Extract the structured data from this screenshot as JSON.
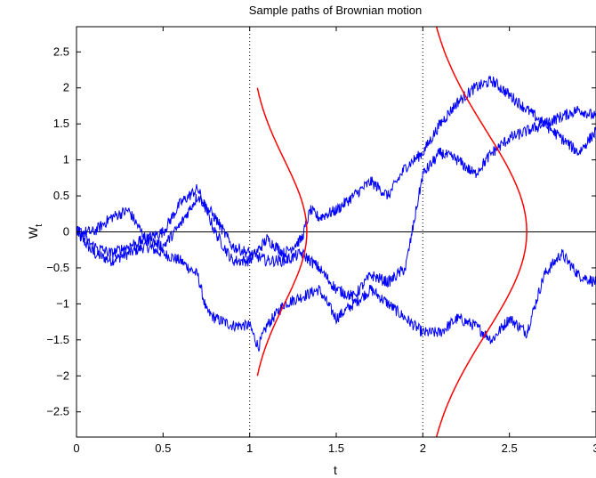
{
  "chart_data": {
    "type": "line",
    "title": "Sample paths of Brownian motion",
    "xlabel": "t",
    "ylabel": "W",
    "ylabel_subscript": "t",
    "xlim": [
      0,
      3
    ],
    "ylim": [
      -2.85,
      2.85
    ],
    "xticks": [
      0,
      0.5,
      1,
      1.5,
      2,
      2.5,
      3
    ],
    "xtick_labels": [
      "0",
      "0.5",
      "1",
      "1.5",
      "2",
      "2.5",
      "3"
    ],
    "yticks": [
      -2.5,
      -2,
      -1.5,
      -1,
      -0.5,
      0,
      0.5,
      1,
      1.5,
      2,
      2.5
    ],
    "ytick_labels": [
      "−2.5",
      "−2",
      "−1.5",
      "−1",
      "−0.5",
      "0",
      "0.5",
      "1",
      "1.5",
      "2",
      "2.5"
    ],
    "grid": false,
    "reference_lines": {
      "horizontal_zero": 0,
      "vertical_dotted": [
        1,
        2
      ]
    },
    "colors": {
      "paths": "#0000ff",
      "densities": "#ff0000",
      "axes": "#000000"
    },
    "series": [
      {
        "kind": "path",
        "x": [
          0,
          0.1,
          0.2,
          0.3,
          0.4,
          0.5,
          0.6,
          0.7,
          0.75,
          0.8,
          0.9,
          1.0,
          1.05,
          1.1,
          1.2,
          1.3,
          1.4,
          1.5,
          1.6,
          1.7,
          1.8,
          1.9,
          2.0,
          2.1,
          2.2,
          2.3,
          2.4,
          2.5,
          2.6,
          2.7,
          2.8,
          2.9,
          3.0
        ],
        "y": [
          0.0,
          -0.3,
          -0.4,
          -0.3,
          -0.2,
          -0.3,
          -0.4,
          -0.6,
          -1.1,
          -1.2,
          -1.3,
          -1.3,
          -1.6,
          -1.3,
          -1.0,
          -0.9,
          -0.8,
          -1.2,
          -1.0,
          -0.8,
          -1.0,
          -1.2,
          -1.4,
          -1.4,
          -1.2,
          -1.3,
          -1.5,
          -1.2,
          -1.4,
          -0.6,
          -0.3,
          -0.6,
          -0.7
        ]
      },
      {
        "kind": "path",
        "x": [
          0,
          0.1,
          0.2,
          0.3,
          0.4,
          0.5,
          0.6,
          0.7,
          0.8,
          0.9,
          1.0,
          1.1,
          1.2,
          1.3,
          1.35,
          1.4,
          1.5,
          1.6,
          1.7,
          1.8,
          1.9,
          2.0,
          2.1,
          2.2,
          2.3,
          2.4,
          2.5,
          2.6,
          2.7,
          2.8,
          2.9,
          3.0
        ],
        "y": [
          0.0,
          0.0,
          0.2,
          0.3,
          -0.1,
          0.0,
          0.4,
          0.6,
          0.0,
          -0.4,
          -0.4,
          -0.1,
          -0.3,
          -0.1,
          0.3,
          0.2,
          0.3,
          0.5,
          0.7,
          0.5,
          0.9,
          1.1,
          1.5,
          1.8,
          2.0,
          2.1,
          1.9,
          1.7,
          1.5,
          1.6,
          1.7,
          1.6
        ]
      },
      {
        "kind": "path",
        "x": [
          0,
          0.1,
          0.2,
          0.3,
          0.4,
          0.5,
          0.6,
          0.7,
          0.8,
          0.9,
          1.0,
          1.1,
          1.2,
          1.3,
          1.4,
          1.5,
          1.6,
          1.7,
          1.8,
          1.9,
          2.0,
          2.1,
          2.2,
          2.3,
          2.4,
          2.5,
          2.6,
          2.7,
          2.8,
          2.9,
          3.0
        ],
        "y": [
          0.0,
          -0.2,
          -0.3,
          -0.2,
          -0.1,
          -0.2,
          0.1,
          0.5,
          0.2,
          -0.2,
          -0.3,
          -0.4,
          -0.4,
          -0.3,
          -0.5,
          -0.8,
          -0.9,
          -0.6,
          -0.7,
          -0.5,
          0.8,
          1.1,
          1.0,
          0.8,
          1.1,
          1.3,
          1.4,
          1.5,
          1.3,
          1.1,
          1.4
        ]
      },
      {
        "kind": "density",
        "base_t": 1,
        "variance": 1,
        "scale": 0.33,
        "w_range": [
          -2,
          2
        ]
      },
      {
        "kind": "density",
        "base_t": 2,
        "variance": 2,
        "scale": 0.6,
        "w_range": [
          -2.85,
          2.85
        ]
      }
    ]
  }
}
